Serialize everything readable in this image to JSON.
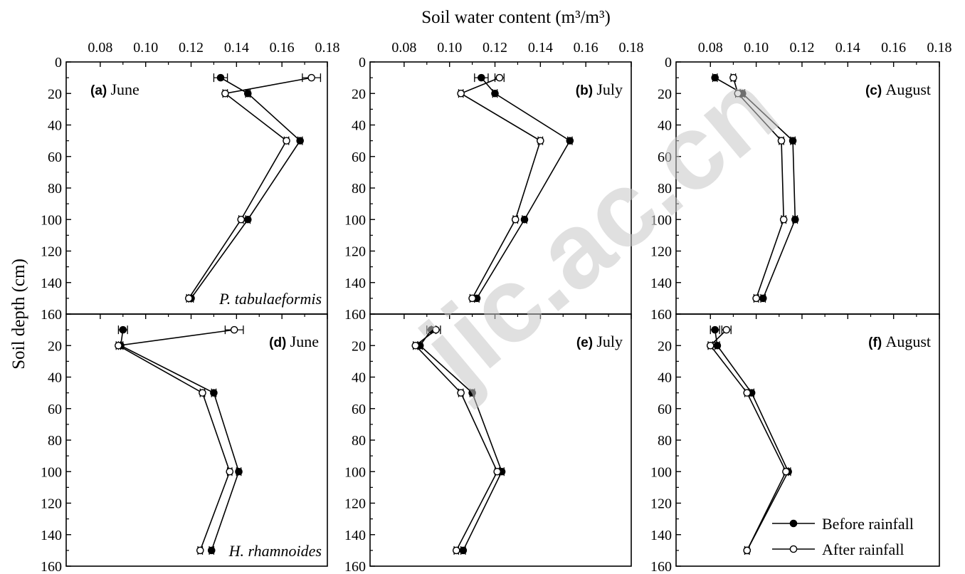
{
  "figure": {
    "x_axis_title": "Soil  water content (m³/m³)",
    "y_axis_title": "Soil depth (cm)"
  },
  "legend": {
    "before": "Before rainfall",
    "after": "After rainfall"
  },
  "watermark_text": "jic.ac.cn",
  "chart_data": [
    {
      "type": "line",
      "panel": "a",
      "panel_letter": "(a)",
      "panel_month": "June",
      "species": "P. tabulaeformis",
      "label_position": "top-left",
      "xlim": [
        0.065,
        0.18
      ],
      "ylim": [
        0,
        160
      ],
      "xticks": [
        "0.08",
        "0.10",
        "0.12",
        "0.14",
        "0.16",
        "0.18"
      ],
      "yticks": [
        "0",
        "20",
        "40",
        "60",
        "80",
        "100",
        "120",
        "140",
        "160"
      ],
      "depths": [
        10,
        20,
        50,
        100,
        150
      ],
      "series": [
        {
          "name": "Before rainfall",
          "marker": "filled",
          "x": [
            0.133,
            0.145,
            0.168,
            0.145,
            0.12
          ],
          "err": [
            0.003,
            0.001,
            0.001,
            0.001,
            0.001
          ]
        },
        {
          "name": "After rainfall",
          "marker": "open",
          "x": [
            0.173,
            0.135,
            0.162,
            0.142,
            0.119
          ],
          "err": [
            0.004,
            0.001,
            0.001,
            0.001,
            0.001
          ]
        }
      ]
    },
    {
      "type": "line",
      "panel": "b",
      "panel_letter": "(b)",
      "panel_month": "July",
      "species": "",
      "label_position": "top-right",
      "xlim": [
        0.065,
        0.18
      ],
      "ylim": [
        0,
        160
      ],
      "xticks": [
        "0.08",
        "0.10",
        "0.12",
        "0.14",
        "0.16",
        "0.18"
      ],
      "yticks": [
        "0",
        "20",
        "40",
        "60",
        "80",
        "100",
        "120",
        "140",
        "160"
      ],
      "depths": [
        10,
        20,
        50,
        100,
        150
      ],
      "series": [
        {
          "name": "Before rainfall",
          "marker": "filled",
          "x": [
            0.114,
            0.12,
            0.153,
            0.133,
            0.112
          ],
          "err": [
            0.003,
            0.001,
            0.001,
            0.001,
            0.001
          ]
        },
        {
          "name": "After rainfall",
          "marker": "open",
          "x": [
            0.122,
            0.105,
            0.14,
            0.129,
            0.11
          ],
          "err": [
            0.002,
            0.001,
            0.001,
            0.001,
            0.001
          ]
        }
      ]
    },
    {
      "type": "line",
      "panel": "c",
      "panel_letter": "(c)",
      "panel_month": "August",
      "species": "",
      "label_position": "top-right",
      "xlim": [
        0.065,
        0.18
      ],
      "ylim": [
        0,
        160
      ],
      "xticks": [
        "0.08",
        "0.10",
        "0.12",
        "0.14",
        "0.16",
        "0.18"
      ],
      "yticks": [
        "0",
        "20",
        "40",
        "60",
        "80",
        "100",
        "120",
        "140",
        "160"
      ],
      "depths": [
        10,
        20,
        50,
        100,
        150
      ],
      "series": [
        {
          "name": "Before rainfall",
          "marker": "filled",
          "x": [
            0.082,
            0.094,
            0.116,
            0.117,
            0.103
          ],
          "err": [
            0.001,
            0.001,
            0.001,
            0.001,
            0.001
          ]
        },
        {
          "name": "After rainfall",
          "marker": "open",
          "x": [
            0.09,
            0.092,
            0.111,
            0.112,
            0.1
          ],
          "err": [
            0.001,
            0.001,
            0.001,
            0.001,
            0.001
          ]
        }
      ]
    },
    {
      "type": "line",
      "panel": "d",
      "panel_letter": "(d)",
      "panel_month": "June",
      "species": "H. rhamnoides",
      "label_position": "top-right",
      "xlim": [
        0.065,
        0.18
      ],
      "ylim": [
        0,
        160
      ],
      "xticks": [],
      "yticks": [
        "",
        "20",
        "40",
        "60",
        "80",
        "100",
        "120",
        "140",
        "160"
      ],
      "depths": [
        10,
        20,
        50,
        100,
        150
      ],
      "series": [
        {
          "name": "Before rainfall",
          "marker": "filled",
          "x": [
            0.09,
            0.089,
            0.13,
            0.141,
            0.129
          ],
          "err": [
            0.002,
            0.001,
            0.001,
            0.001,
            0.001
          ]
        },
        {
          "name": "After rainfall",
          "marker": "open",
          "x": [
            0.139,
            0.088,
            0.125,
            0.137,
            0.124
          ],
          "err": [
            0.004,
            0.001,
            0.001,
            0.001,
            0.001
          ]
        }
      ]
    },
    {
      "type": "line",
      "panel": "e",
      "panel_letter": "(e)",
      "panel_month": "July",
      "species": "",
      "label_position": "top-right",
      "xlim": [
        0.065,
        0.18
      ],
      "ylim": [
        0,
        160
      ],
      "xticks": [],
      "yticks": [
        "",
        "20",
        "40",
        "60",
        "80",
        "100",
        "120",
        "140",
        "160"
      ],
      "depths": [
        10,
        20,
        50,
        100,
        150
      ],
      "series": [
        {
          "name": "Before rainfall",
          "marker": "filled",
          "x": [
            0.092,
            0.087,
            0.11,
            0.123,
            0.106
          ],
          "err": [
            0.002,
            0.001,
            0.001,
            0.001,
            0.001
          ]
        },
        {
          "name": "After rainfall",
          "marker": "open",
          "x": [
            0.094,
            0.085,
            0.105,
            0.121,
            0.103
          ],
          "err": [
            0.002,
            0.001,
            0.001,
            0.001,
            0.001
          ]
        }
      ]
    },
    {
      "type": "line",
      "panel": "f",
      "panel_letter": "(f)",
      "panel_month": "August",
      "species": "",
      "label_position": "top-right",
      "xlim": [
        0.065,
        0.18
      ],
      "ylim": [
        0,
        160
      ],
      "xticks": [],
      "yticks": [
        "",
        "20",
        "40",
        "60",
        "80",
        "100",
        "120",
        "140",
        "160"
      ],
      "depths": [
        10,
        20,
        50,
        100,
        150
      ],
      "legend": true,
      "series": [
        {
          "name": "Before rainfall",
          "marker": "filled",
          "x": [
            0.082,
            0.083,
            0.098,
            0.114,
            0.096
          ],
          "err": [
            0.002,
            0.001,
            0.001,
            0.001,
            0.001
          ]
        },
        {
          "name": "After rainfall",
          "marker": "open",
          "x": [
            0.087,
            0.08,
            0.096,
            0.113,
            0.096
          ],
          "err": [
            0.002,
            0.001,
            0.001,
            0.001,
            0.001
          ]
        }
      ]
    }
  ]
}
